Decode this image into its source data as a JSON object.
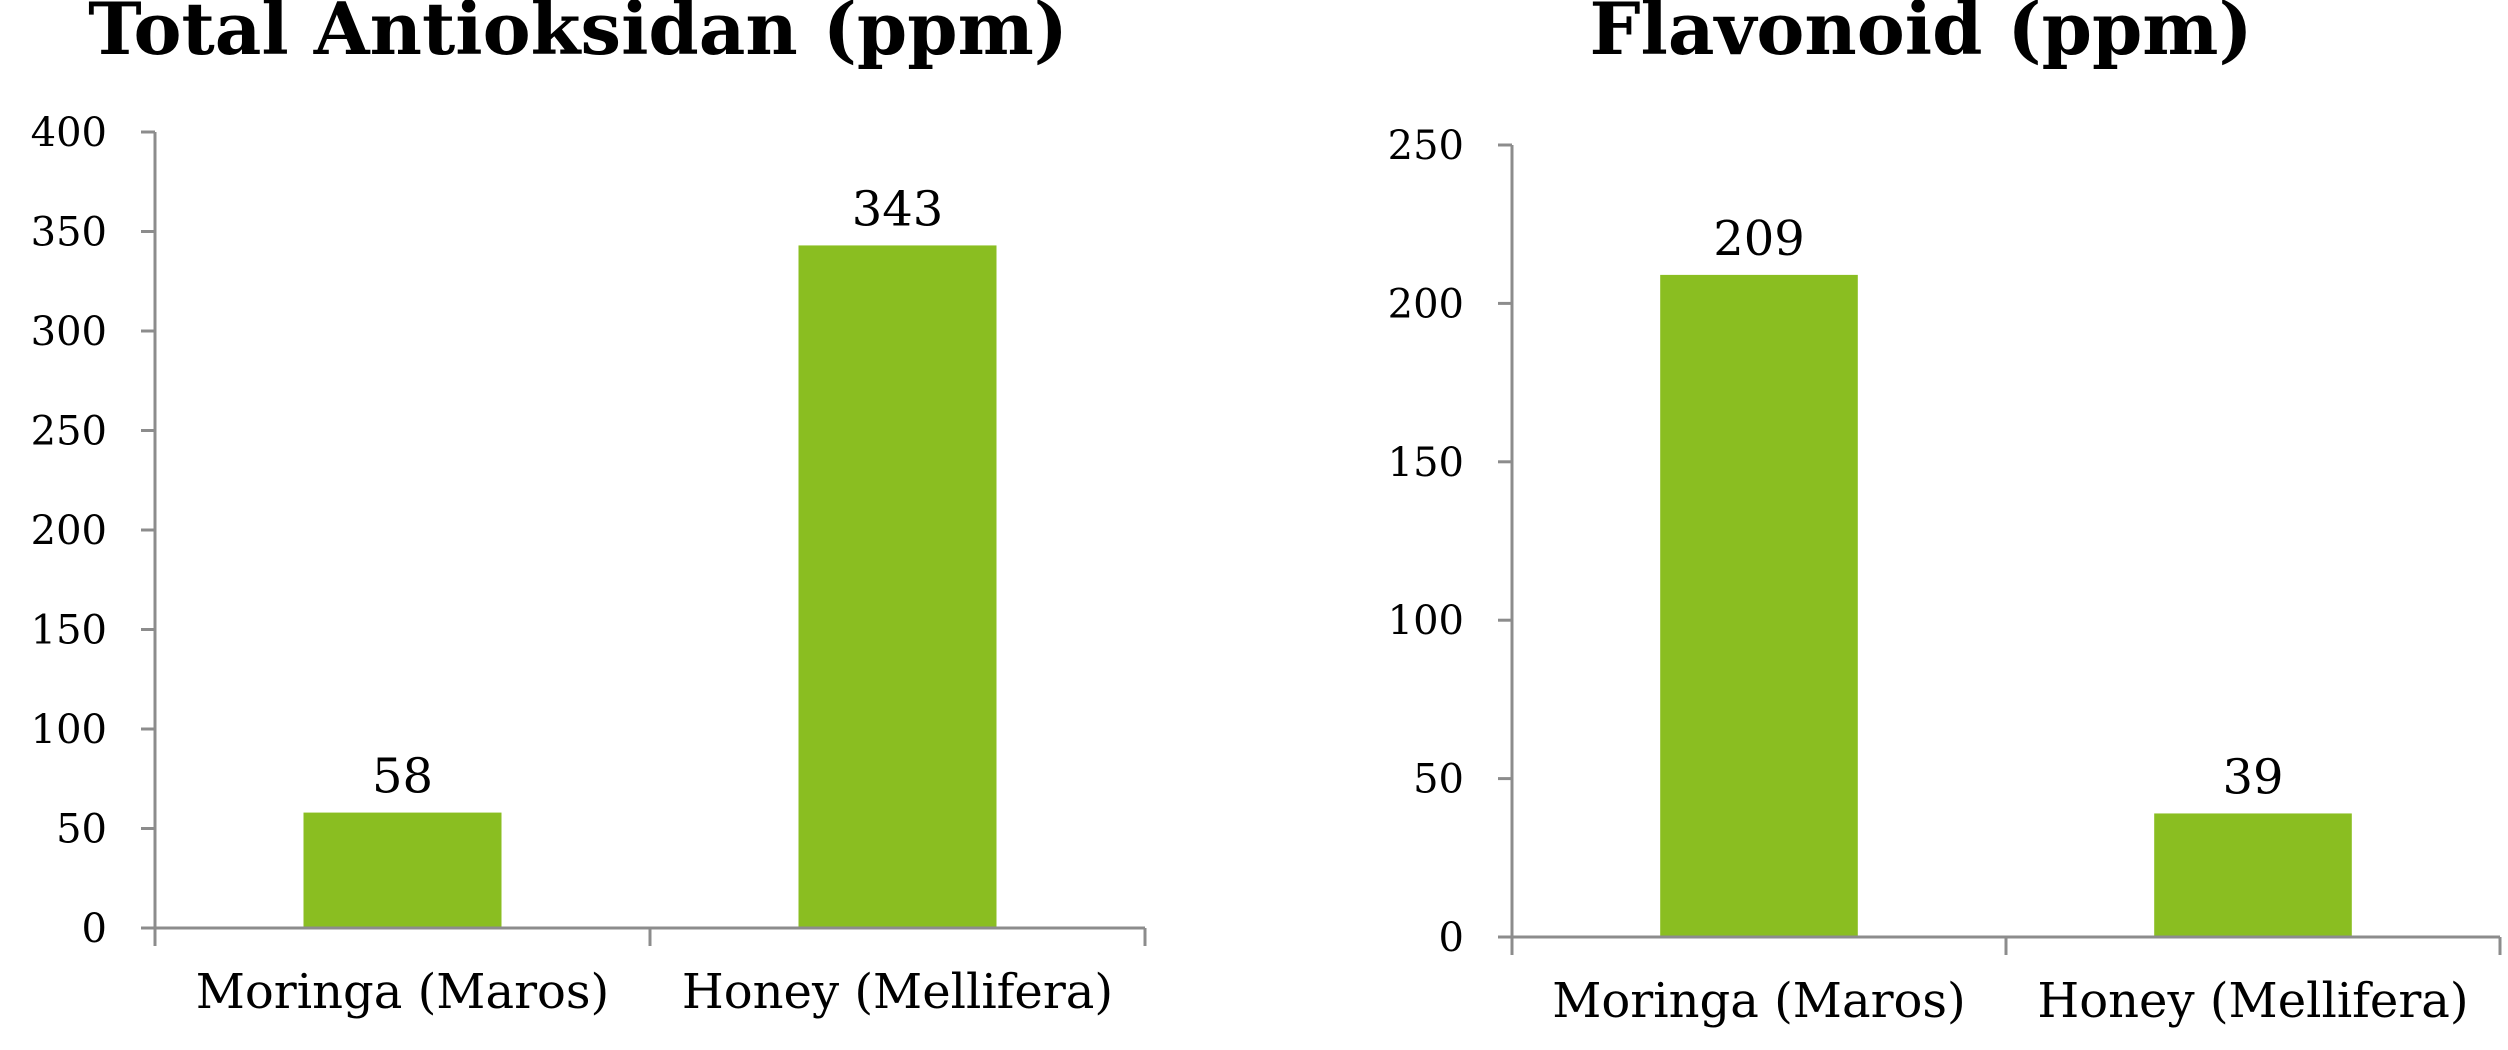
{
  "chart_data": [
    {
      "type": "bar",
      "title": "Total Antioksidan (ppm)",
      "xlabel": "",
      "ylabel": "",
      "categories": [
        "Moringa (Maros)",
        "Honey (Mellifera)"
      ],
      "values": [
        58,
        343
      ],
      "data_labels": [
        "58",
        "343"
      ],
      "ylim": [
        0,
        400
      ],
      "yticks": [
        "0",
        "50",
        "100",
        "150",
        "200",
        "250",
        "300",
        "350",
        "400"
      ],
      "grid": false,
      "legend": "none",
      "bar_color": "#8abe21"
    },
    {
      "type": "bar",
      "title": "Flavonoid (ppm)",
      "xlabel": "",
      "ylabel": "",
      "categories": [
        "Moringa (Maros)",
        "Honey (Mellifera)"
      ],
      "values": [
        209,
        39
      ],
      "data_labels": [
        "209",
        "39"
      ],
      "ylim": [
        0,
        250
      ],
      "yticks": [
        "0",
        "50",
        "100",
        "150",
        "200",
        "250"
      ],
      "grid": false,
      "legend": "none",
      "bar_color": "#8abe21"
    }
  ]
}
